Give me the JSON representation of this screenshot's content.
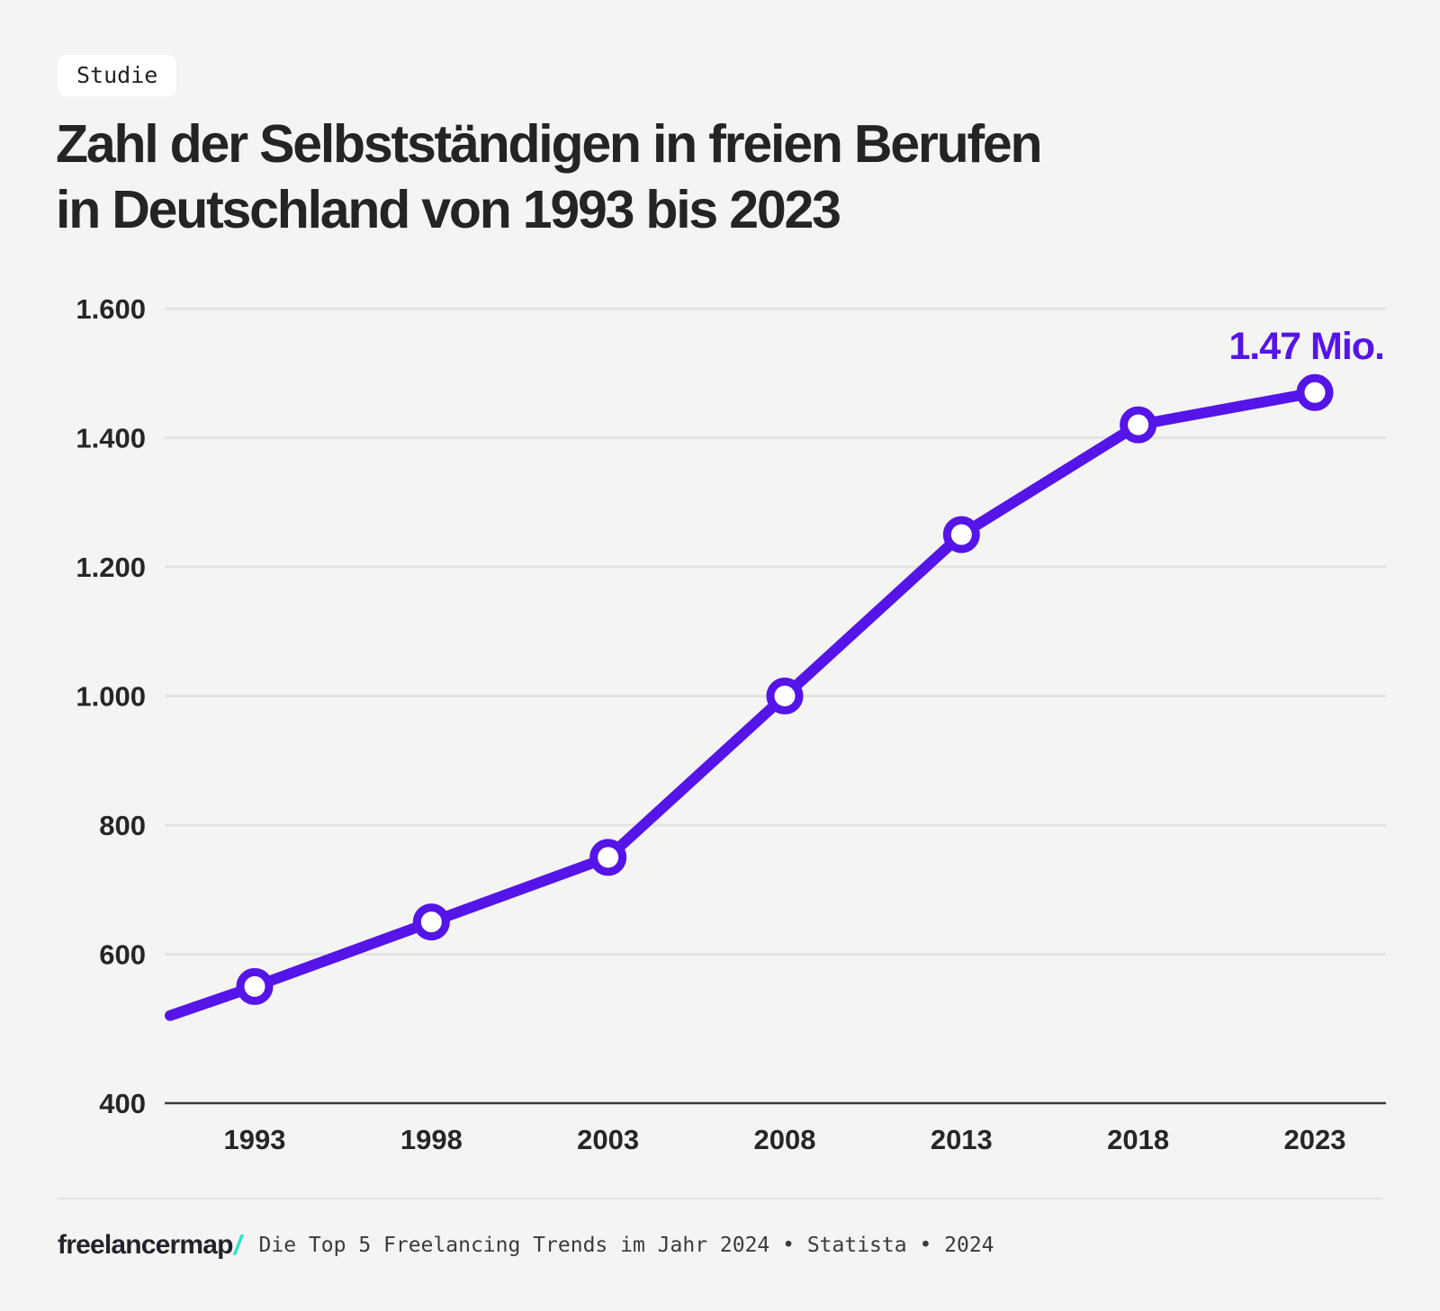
{
  "page": {
    "background": "#f4f4f2"
  },
  "badge": {
    "label": "Studie"
  },
  "title": {
    "line1": "Zahl der Selbstständigen in freien Berufen",
    "line2": "in Deutschland von 1993 bis 2023"
  },
  "chart_data": {
    "type": "line",
    "categories": [
      "1993",
      "1998",
      "2003",
      "2008",
      "2013",
      "2018",
      "2023"
    ],
    "values": [
      550,
      650,
      750,
      1000,
      1250,
      1420,
      1470
    ],
    "lead_in_value": 505,
    "annotation": "1.47 Mio.",
    "y_ticks": [
      {
        "value": 1600,
        "label": "1.600"
      },
      {
        "value": 1400,
        "label": "1.400"
      },
      {
        "value": 1200,
        "label": "1.200"
      },
      {
        "value": 1000,
        "label": "1.000"
      },
      {
        "value": 800,
        "label": "800"
      },
      {
        "value": 600,
        "label": "600"
      },
      {
        "value": 400,
        "label": "400"
      }
    ],
    "ylim": [
      400,
      1600
    ],
    "grid": true,
    "legend_position": "none",
    "colors": {
      "line": "#5514e8",
      "marker_fill": "#ffffff",
      "annotation": "#5514e8",
      "gridline": "#e3e3e1",
      "axis": "#3d3d3d",
      "tick_text": "#262626"
    }
  },
  "footer": {
    "logo": "freelancermap",
    "logo_slash": "/",
    "slash_color": "#2ce5c4",
    "source": "Die Top 5 Freelancing Trends im Jahr 2024 • Statista • 2024"
  }
}
